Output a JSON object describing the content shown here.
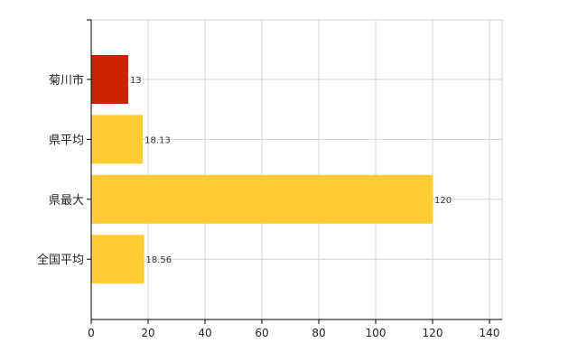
{
  "chart_data": {
    "type": "bar",
    "orientation": "horizontal",
    "categories": [
      "菊川市",
      "県平均",
      "県最大",
      "全国平均"
    ],
    "values": [
      13,
      18.13,
      120,
      18.56
    ],
    "data_labels": [
      "13",
      "18.13",
      "120",
      "18.56"
    ],
    "bar_colors": [
      "#cc2200",
      "#ffcc33",
      "#ffcc33",
      "#ffcc33"
    ],
    "xlim": [
      0,
      140
    ],
    "xticks": [
      0,
      20,
      40,
      60,
      80,
      100,
      120,
      140
    ],
    "grid": true,
    "legend": "none"
  }
}
